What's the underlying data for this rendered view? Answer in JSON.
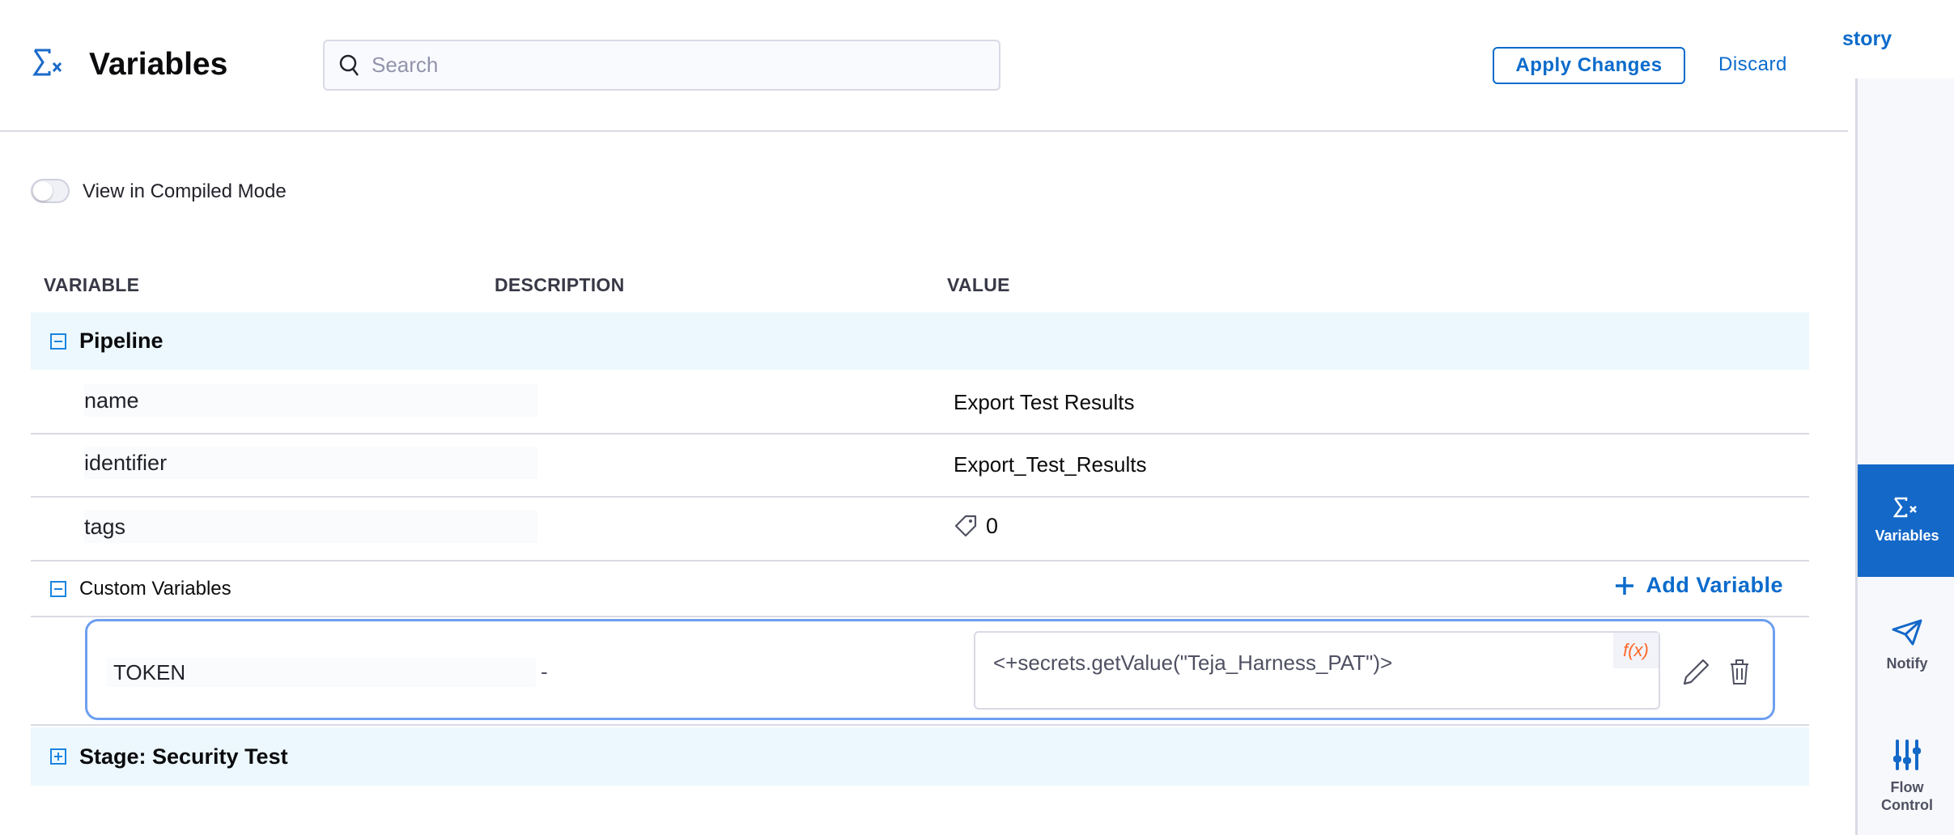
{
  "header": {
    "title": "Variables",
    "search_placeholder": "Search",
    "apply_label": "Apply Changes",
    "discard_label": "Discard",
    "history_fragment": "story"
  },
  "rail": {
    "items": [
      {
        "label": "Variables",
        "icon": "sigma-x-icon",
        "active": true
      },
      {
        "label": "Notify",
        "icon": "paper-plane-icon"
      },
      {
        "label": "Flow Control",
        "icon": "sliders-icon"
      }
    ]
  },
  "compiled_toggle": {
    "label": "View in Compiled Mode",
    "on": false
  },
  "columns": [
    "VARIABLE",
    "DESCRIPTION",
    "VALUE"
  ],
  "pipeline": {
    "label": "Pipeline",
    "rows": [
      {
        "name": "name",
        "value": "Export Test Results"
      },
      {
        "name": "identifier",
        "value": "Export_Test_Results"
      },
      {
        "name": "tags",
        "value": "0"
      }
    ]
  },
  "custom": {
    "label": "Custom Variables",
    "add_label": "Add Variable",
    "variable": {
      "name": "TOKEN",
      "description": "-",
      "value": "<+secrets.getValue(\"Teja_Harness_PAT\")>",
      "fx": "f(x)"
    }
  },
  "stage": {
    "label": "Stage: Security Test"
  },
  "colors": {
    "accent": "#0b6bcb",
    "group_bg": "#ecf8fe",
    "fx": "#ff6a2b"
  }
}
